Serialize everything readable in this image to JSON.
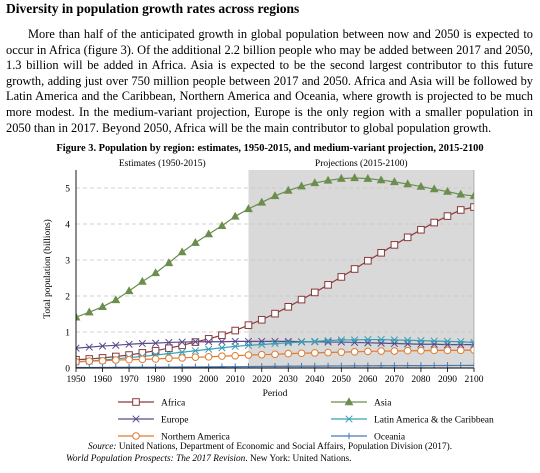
{
  "heading": "Diversity in population growth rates across regions",
  "paragraph": "More than half of the anticipated growth in global population between now and 2050 is expected to occur in Africa (figure 3). Of the additional 2.2 billion people who may be added between 2017 and 2050, 1.3 billion will be added in Africa. Asia is expected to be the second largest contributor to this future growth, adding just over 750 million people between 2017 and 2050. Africa and Asia will be followed by Latin America and the Caribbean, Northern America and Oceania, where growth is projected to be much more modest. In the medium-variant projection, Europe is the only region with a smaller population in 2050 than in 2017. Beyond 2050, Africa will be the main contributor to global population growth.",
  "figure_title": "Figure 3. Population by region: estimates, 1950-2015, and medium-variant projection, 2015-2100",
  "source": {
    "label": "Source:",
    "text": " United Nations, Department of Economic and Social Affairs, Population Division (2017).",
    "publication": "World Population Prospects: The 2017 Revision",
    "tail": ". New York: United Nations."
  },
  "chart_data": {
    "type": "line",
    "title": "Figure 3. Population by region: estimates, 1950-2015, and medium-variant projection, 2015-2100",
    "xlabel": "Period",
    "ylabel": "Total population (billions)",
    "xlim": [
      1950,
      2100
    ],
    "ylim": [
      0,
      5.5
    ],
    "grid": true,
    "legend_position": "bottom",
    "x_ticks": [
      "1950",
      "1960",
      "1970",
      "1980",
      "1990",
      "2000",
      "2010",
      "2020",
      "2030",
      "2040",
      "2050",
      "2060",
      "2070",
      "2080",
      "2090",
      "2100"
    ],
    "y_ticks": [
      "0",
      "1",
      "2",
      "3",
      "4",
      "5"
    ],
    "period_labels": [
      "Estimates (1950-2015)",
      "Projections (2015-2100)"
    ],
    "projection_start": 2015,
    "colors": {
      "shade": "#d9d9d9",
      "grid": "#c4c4c4"
    },
    "x": [
      1950,
      1955,
      1960,
      1965,
      1970,
      1975,
      1980,
      1985,
      1990,
      1995,
      2000,
      2005,
      2010,
      2015,
      2020,
      2025,
      2030,
      2035,
      2040,
      2045,
      2050,
      2055,
      2060,
      2065,
      2070,
      2075,
      2080,
      2085,
      2090,
      2095,
      2100
    ],
    "series": [
      {
        "name": "Africa",
        "color": "#8b3a3a",
        "marker": "square",
        "values": [
          0.23,
          0.25,
          0.28,
          0.32,
          0.36,
          0.42,
          0.48,
          0.55,
          0.63,
          0.72,
          0.81,
          0.91,
          1.04,
          1.19,
          1.34,
          1.51,
          1.7,
          1.9,
          2.1,
          2.31,
          2.53,
          2.75,
          2.98,
          3.2,
          3.42,
          3.63,
          3.84,
          4.04,
          4.22,
          4.39,
          4.47
        ]
      },
      {
        "name": "Asia",
        "color": "#6b8e4e",
        "marker": "triangle",
        "values": [
          1.41,
          1.55,
          1.7,
          1.89,
          2.14,
          2.4,
          2.64,
          2.92,
          3.22,
          3.48,
          3.72,
          3.95,
          4.21,
          4.42,
          4.6,
          4.78,
          4.93,
          5.05,
          5.14,
          5.21,
          5.26,
          5.28,
          5.26,
          5.22,
          5.17,
          5.11,
          5.04,
          4.97,
          4.9,
          4.82,
          4.78
        ]
      },
      {
        "name": "Europe",
        "color": "#5b4a8b",
        "marker": "x",
        "values": [
          0.55,
          0.58,
          0.61,
          0.63,
          0.66,
          0.68,
          0.69,
          0.71,
          0.72,
          0.73,
          0.73,
          0.73,
          0.74,
          0.74,
          0.74,
          0.74,
          0.74,
          0.73,
          0.73,
          0.72,
          0.72,
          0.71,
          0.7,
          0.69,
          0.68,
          0.67,
          0.66,
          0.66,
          0.65,
          0.65,
          0.65
        ]
      },
      {
        "name": "Latin America & the Caribbean",
        "color": "#3a9fb5",
        "marker": "star",
        "values": [
          0.17,
          0.19,
          0.22,
          0.25,
          0.29,
          0.32,
          0.36,
          0.4,
          0.44,
          0.48,
          0.52,
          0.56,
          0.6,
          0.63,
          0.65,
          0.68,
          0.7,
          0.72,
          0.74,
          0.76,
          0.78,
          0.78,
          0.79,
          0.79,
          0.78,
          0.77,
          0.76,
          0.75,
          0.74,
          0.73,
          0.71
        ]
      },
      {
        "name": "Northern America",
        "color": "#e07b30",
        "marker": "circle",
        "values": [
          0.17,
          0.19,
          0.2,
          0.22,
          0.23,
          0.24,
          0.25,
          0.27,
          0.28,
          0.3,
          0.31,
          0.33,
          0.34,
          0.36,
          0.37,
          0.38,
          0.4,
          0.41,
          0.42,
          0.43,
          0.44,
          0.45,
          0.46,
          0.47,
          0.47,
          0.48,
          0.48,
          0.49,
          0.49,
          0.49,
          0.5
        ]
      },
      {
        "name": "Oceania",
        "color": "#4a78b5",
        "marker": "plus",
        "values": [
          0.013,
          0.014,
          0.016,
          0.018,
          0.02,
          0.021,
          0.023,
          0.025,
          0.027,
          0.029,
          0.031,
          0.034,
          0.037,
          0.04,
          0.043,
          0.046,
          0.048,
          0.051,
          0.053,
          0.055,
          0.057,
          0.059,
          0.061,
          0.063,
          0.064,
          0.066,
          0.067,
          0.068,
          0.07,
          0.071,
          0.072
        ]
      }
    ]
  }
}
